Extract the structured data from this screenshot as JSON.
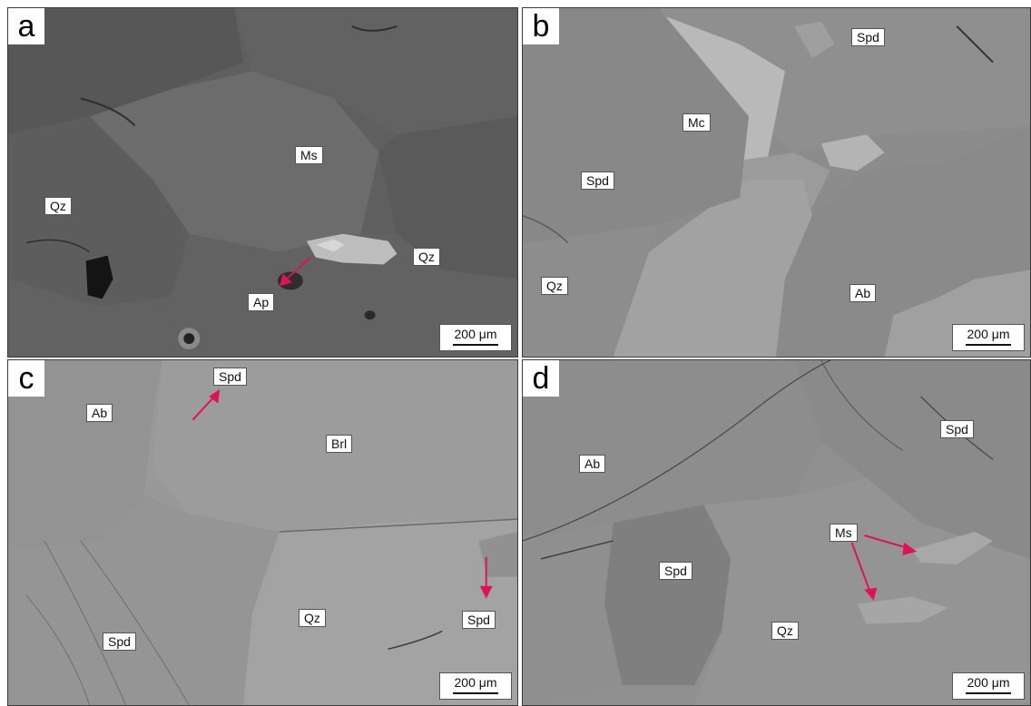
{
  "colors": {
    "arrow": "#e0105a",
    "scale_box": "#ffffff"
  },
  "panels": {
    "a": {
      "letter": "a",
      "scale": "200 μm",
      "labels": {
        "qz_left": "Qz",
        "ms": "Ms",
        "qz_right": "Qz",
        "ap": "Ap"
      }
    },
    "b": {
      "letter": "b",
      "scale": "200 μm",
      "labels": {
        "spd_top": "Spd",
        "mc": "Mc",
        "spd_left": "Spd",
        "qz": "Qz",
        "ab": "Ab"
      }
    },
    "c": {
      "letter": "c",
      "scale": "200 μm",
      "labels": {
        "ab": "Ab",
        "spd_top": "Spd",
        "brl": "Brl",
        "spd_bottom_left": "Spd",
        "qz": "Qz",
        "spd_right": "Spd"
      }
    },
    "d": {
      "letter": "d",
      "scale": "200 μm",
      "labels": {
        "ab": "Ab",
        "spd_top": "Spd",
        "ms": "Ms",
        "spd_center": "Spd",
        "qz": "Qz"
      }
    }
  }
}
